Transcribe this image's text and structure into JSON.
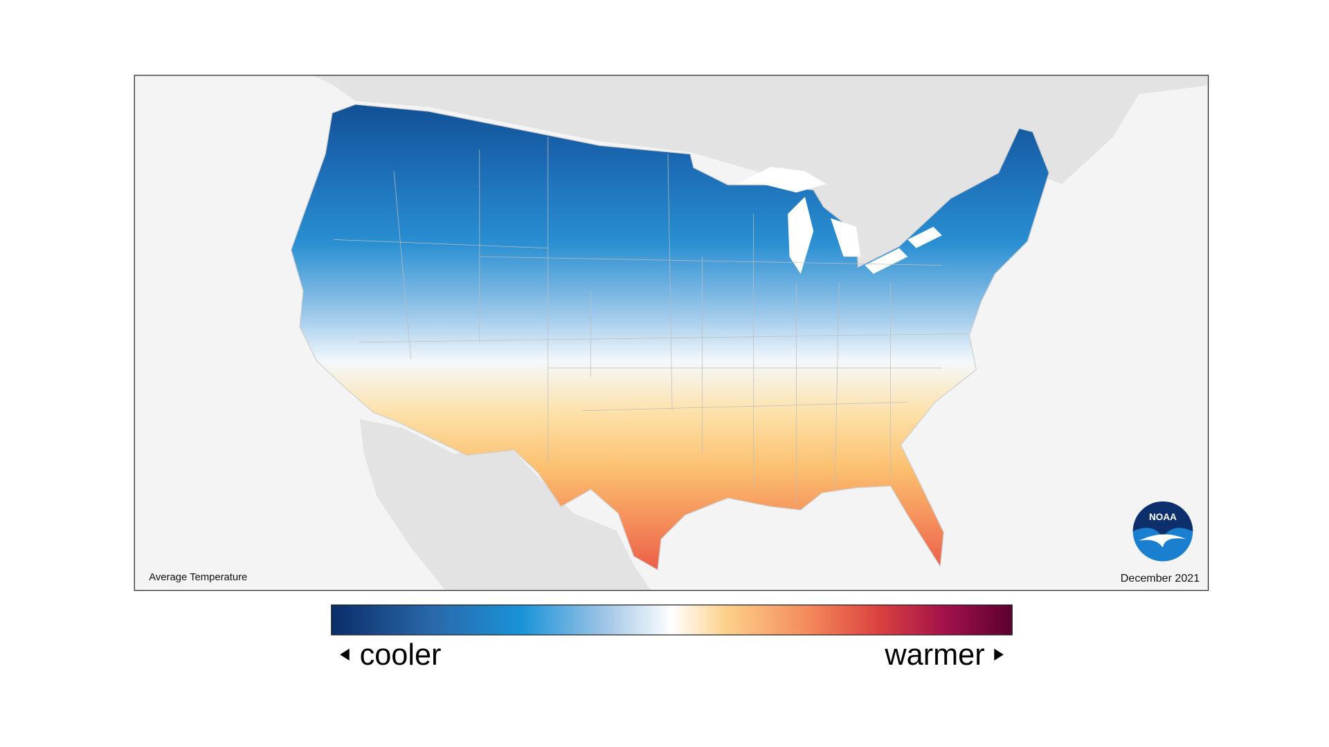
{
  "map": {
    "title": "Average Temperature",
    "date": "December 2021",
    "logo": "NOAA"
  },
  "legend": {
    "low_label": "cooler",
    "high_label": "warmer"
  }
}
